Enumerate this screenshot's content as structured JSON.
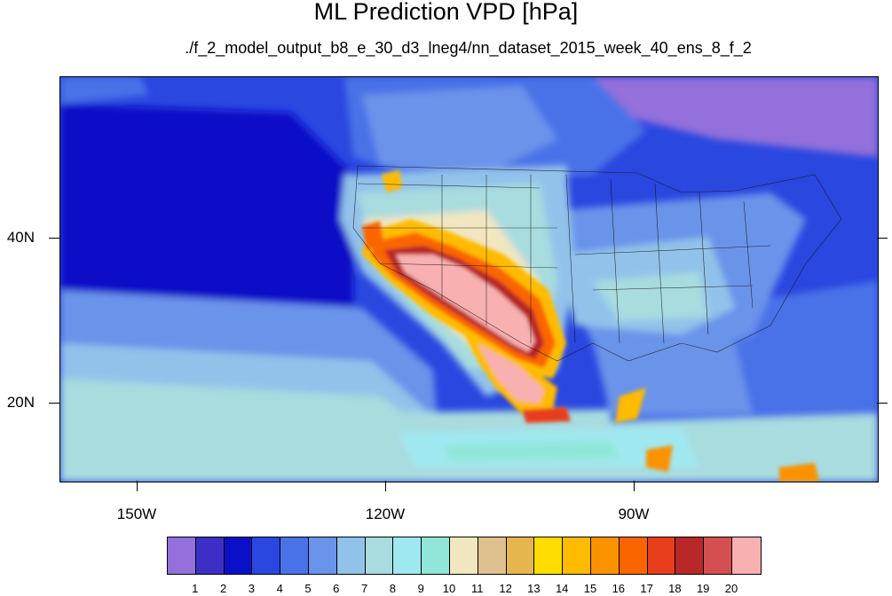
{
  "title": "ML Prediction VPD [hPa]",
  "subtitle": "./f_2_model_output_b8_e_30_d3_lneg4/nn_dataset_2015_week_40_ens_8_f_2",
  "map": {
    "lon_labels": [
      "150W",
      "120W",
      "90W"
    ],
    "lat_labels": [
      "40N",
      "20N"
    ]
  },
  "colorbar": {
    "labels": [
      "1",
      "2",
      "3",
      "4",
      "5",
      "6",
      "7",
      "8",
      "9",
      "10",
      "11",
      "12",
      "13",
      "14",
      "15",
      "16",
      "17",
      "18",
      "19",
      "20"
    ],
    "colors": [
      "#9370db",
      "#3d2fc6",
      "#0a10c8",
      "#2a47e0",
      "#4a72e8",
      "#6a93ea",
      "#92c2ea",
      "#a8dcdf",
      "#a0e8f0",
      "#90e6d8",
      "#f2e6c0",
      "#dfc190",
      "#e6b64e",
      "#ffdd00",
      "#ffbb00",
      "#fb9200",
      "#fb6500",
      "#e83e1c",
      "#b82828",
      "#d45050",
      "#f8b0b0"
    ]
  }
}
